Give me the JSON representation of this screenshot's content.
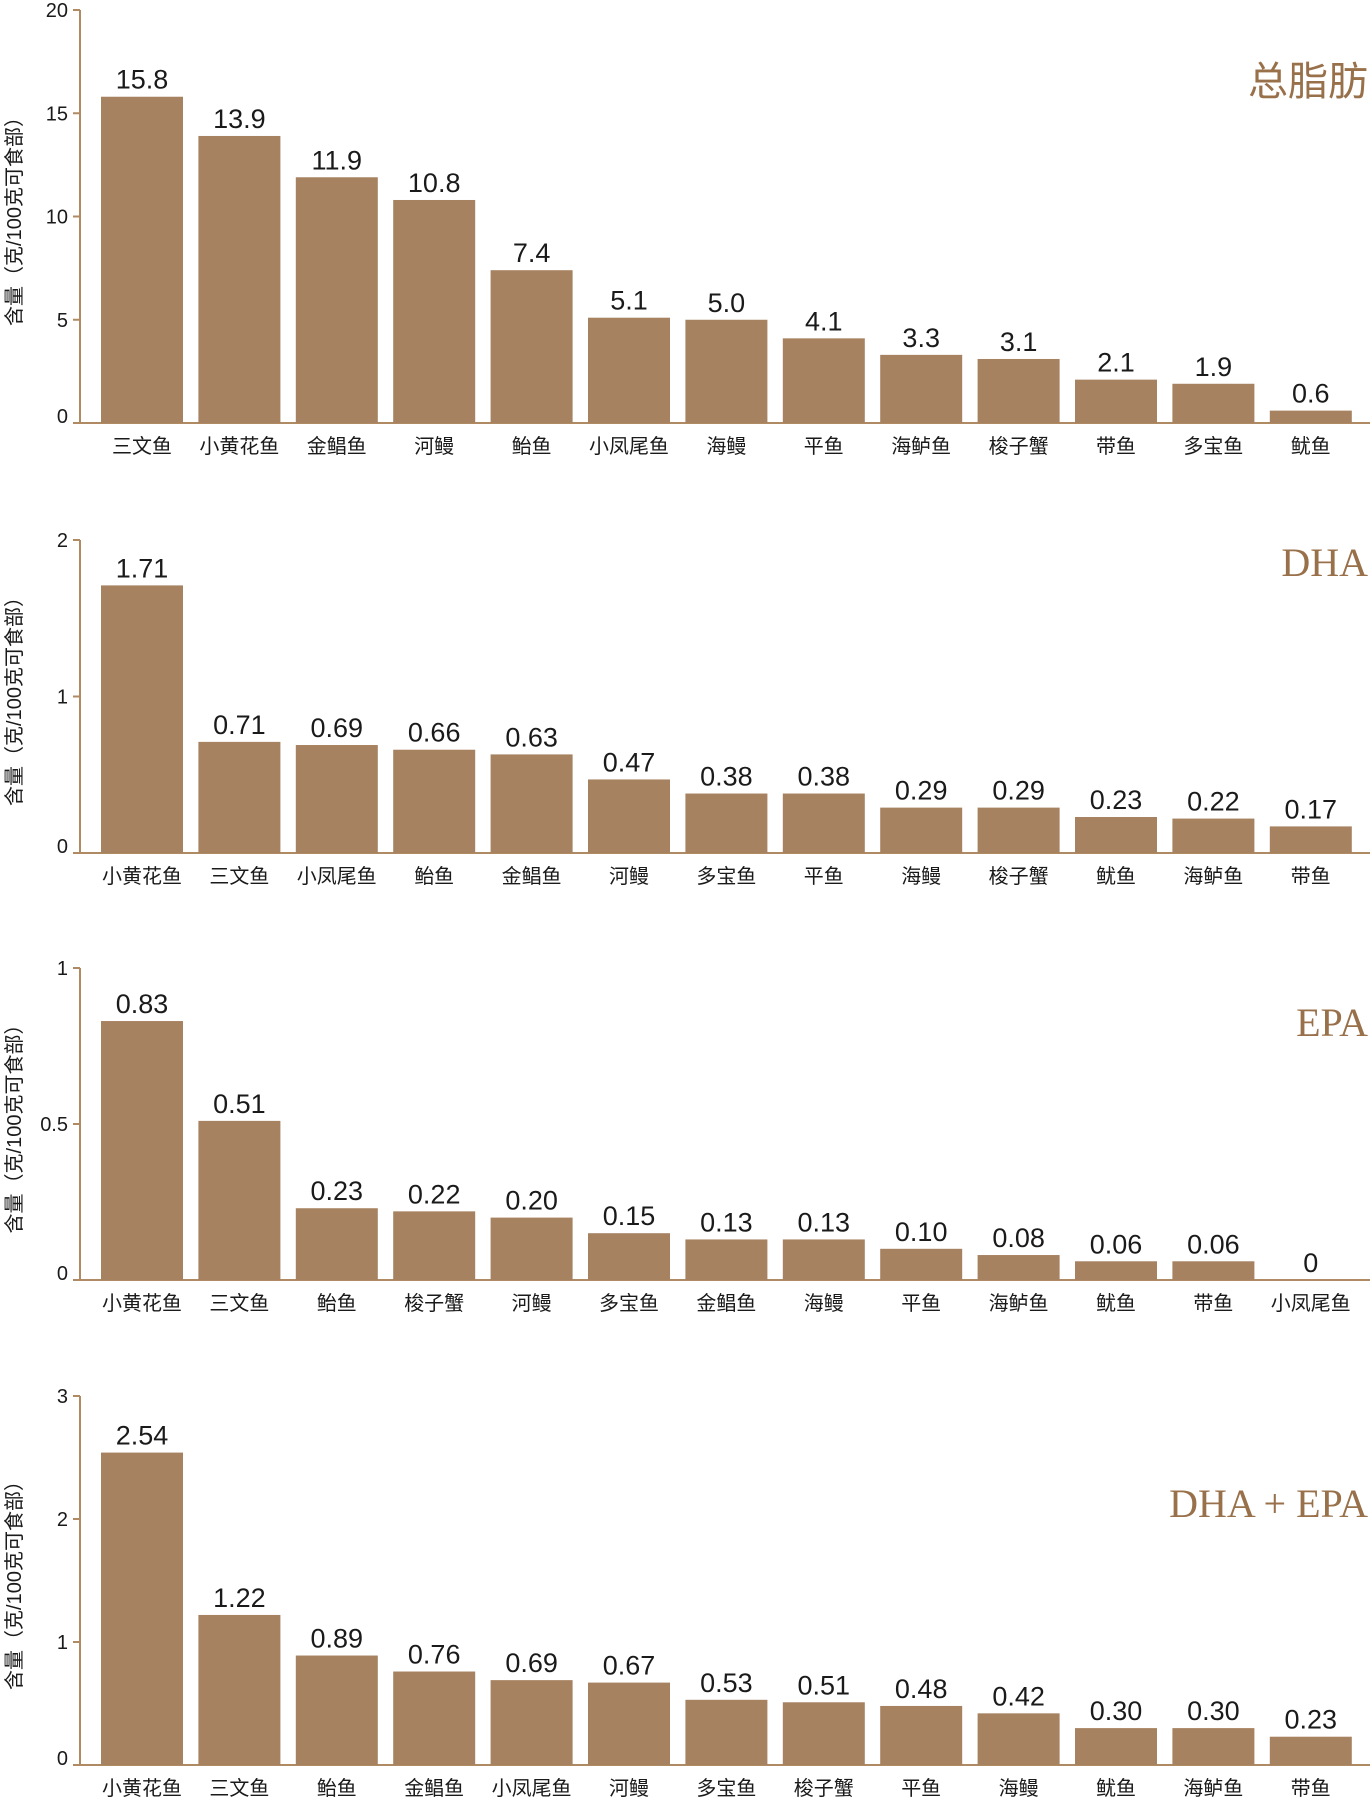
{
  "colors": {
    "bar": "#a78261",
    "axis": "#b08a63",
    "title": "#98704a",
    "text": "#1a1a1a"
  },
  "chart_data": [
    {
      "type": "bar",
      "title": "总脂肪",
      "ylabel": "含量（克/100克可食部）",
      "ylim": [
        0,
        20
      ],
      "yticks": [
        "0",
        "5",
        "10",
        "15",
        "20"
      ],
      "categories": [
        "三文鱼",
        "小黄花鱼",
        "金鲳鱼",
        "河鳗",
        "鲐鱼",
        "小凤尾鱼",
        "海鳗",
        "平鱼",
        "海鲈鱼",
        "梭子蟹",
        "带鱼",
        "多宝鱼",
        "鱿鱼"
      ],
      "values": [
        15.8,
        13.9,
        11.9,
        10.8,
        7.4,
        5.1,
        5.0,
        4.1,
        3.3,
        3.1,
        2.1,
        1.9,
        0.6
      ],
      "value_labels": [
        "15.8",
        "13.9",
        "11.9",
        "10.8",
        "7.4",
        "5.1",
        "5.0",
        "4.1",
        "3.3",
        "3.1",
        "2.1",
        "1.9",
        "0.6"
      ]
    },
    {
      "type": "bar",
      "title": "DHA",
      "ylabel": "含量（克/100克可食部）",
      "ylim": [
        0,
        2
      ],
      "yticks": [
        "0",
        "1",
        "2"
      ],
      "categories": [
        "小黄花鱼",
        "三文鱼",
        "小凤尾鱼",
        "鲐鱼",
        "金鲳鱼",
        "河鳗",
        "多宝鱼",
        "平鱼",
        "海鳗",
        "梭子蟹",
        "鱿鱼",
        "海鲈鱼",
        "带鱼"
      ],
      "values": [
        1.71,
        0.71,
        0.69,
        0.66,
        0.63,
        0.47,
        0.38,
        0.38,
        0.29,
        0.29,
        0.23,
        0.22,
        0.17
      ],
      "value_labels": [
        "1.71",
        "0.71",
        "0.69",
        "0.66",
        "0.63",
        "0.47",
        "0.38",
        "0.38",
        "0.29",
        "0.29",
        "0.23",
        "0.22",
        "0.17"
      ]
    },
    {
      "type": "bar",
      "title": "EPA",
      "ylabel": "含量（克/100克可食部）",
      "ylim": [
        0,
        1
      ],
      "yticks": [
        "0",
        "0.5",
        "1"
      ],
      "categories": [
        "小黄花鱼",
        "三文鱼",
        "鲐鱼",
        "梭子蟹",
        "河鳗",
        "多宝鱼",
        "金鲳鱼",
        "海鳗",
        "平鱼",
        "海鲈鱼",
        "鱿鱼",
        "带鱼",
        "小凤尾鱼"
      ],
      "values": [
        0.83,
        0.51,
        0.23,
        0.22,
        0.2,
        0.15,
        0.13,
        0.13,
        0.1,
        0.08,
        0.06,
        0.06,
        0
      ],
      "value_labels": [
        "0.83",
        "0.51",
        "0.23",
        "0.22",
        "0.20",
        "0.15",
        "0.13",
        "0.13",
        "0.10",
        "0.08",
        "0.06",
        "0.06",
        "0"
      ]
    },
    {
      "type": "bar",
      "title": "DHA + EPA",
      "ylabel": "含量（克/100克可食部）",
      "ylim": [
        0,
        3
      ],
      "yticks": [
        "0",
        "1",
        "2",
        "3"
      ],
      "categories": [
        "小黄花鱼",
        "三文鱼",
        "鲐鱼",
        "金鲳鱼",
        "小凤尾鱼",
        "河鳗",
        "多宝鱼",
        "梭子蟹",
        "平鱼",
        "海鳗",
        "鱿鱼",
        "海鲈鱼",
        "带鱼"
      ],
      "values": [
        2.54,
        1.22,
        0.89,
        0.76,
        0.69,
        0.67,
        0.53,
        0.51,
        0.48,
        0.42,
        0.3,
        0.3,
        0.23
      ],
      "value_labels": [
        "2.54",
        "1.22",
        "0.89",
        "0.76",
        "0.69",
        "0.67",
        "0.53",
        "0.51",
        "0.48",
        "0.42",
        "0.30",
        "0.30",
        "0.23"
      ]
    }
  ]
}
